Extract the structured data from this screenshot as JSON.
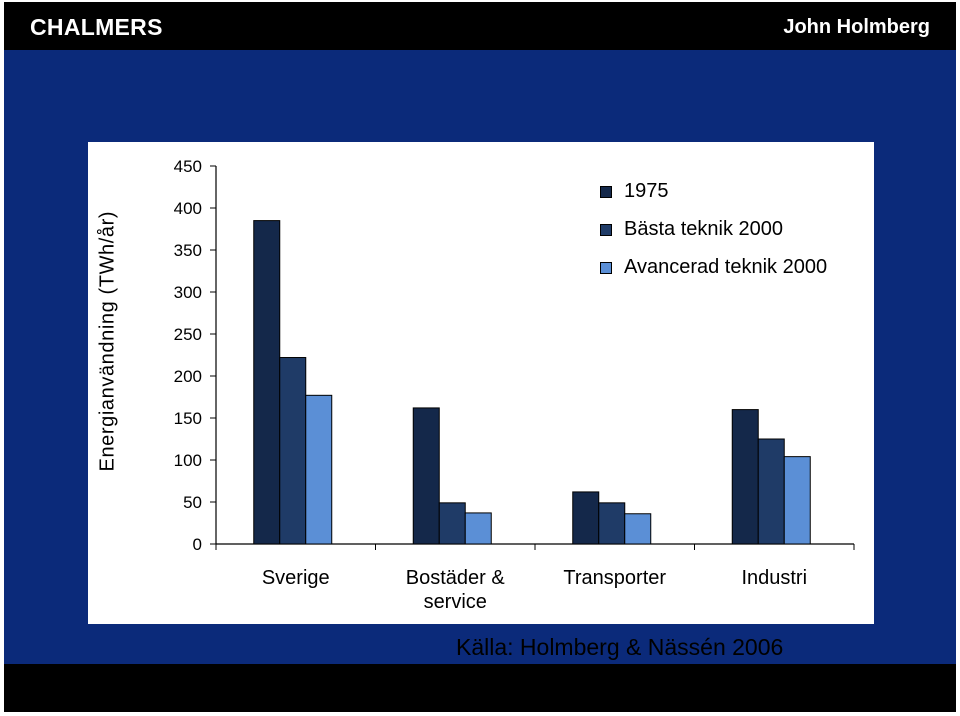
{
  "header": {
    "logo": "CHALMERS",
    "author": "John Holmberg"
  },
  "footer": {
    "source": "Källa: Holmberg & Nässén 2006"
  },
  "chart_data": {
    "type": "bar",
    "ylabel": "Energianvändning (TWh/år)",
    "xlabel": "",
    "ylim": [
      0,
      450
    ],
    "yticks": [
      0,
      50,
      100,
      150,
      200,
      250,
      300,
      350,
      400,
      450
    ],
    "categories": [
      [
        "Sverige"
      ],
      [
        "Bostäder &",
        "service"
      ],
      [
        "Transporter"
      ],
      [
        "Industri"
      ]
    ],
    "series": [
      {
        "name": "1975",
        "values": [
          385,
          162,
          62,
          160
        ],
        "color": "#14284a"
      },
      {
        "name": "Bästa teknik 2000",
        "values": [
          222,
          49,
          49,
          125
        ],
        "color": "#1f3b67"
      },
      {
        "name": "Avancerad teknik 2000",
        "values": [
          177,
          37,
          36,
          104
        ],
        "color": "#5b8fd6"
      }
    ],
    "legend_position": "top-right",
    "grid": false
  }
}
